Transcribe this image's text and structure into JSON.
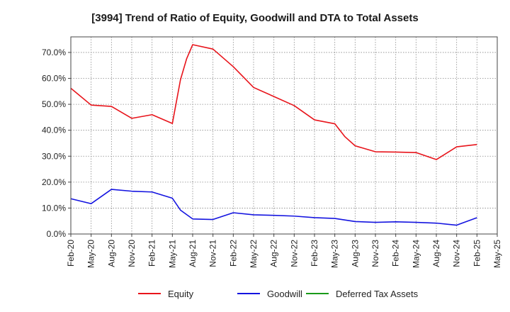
{
  "chart_data": {
    "type": "line",
    "title": "[3994]  Trend of Ratio of Equity, Goodwill and DTA to Total Assets",
    "xlabel": "",
    "ylabel": "",
    "ylim": [
      0,
      76
    ],
    "y_ticks": [
      0,
      10,
      20,
      30,
      40,
      50,
      60,
      70
    ],
    "y_tick_labels": [
      "0.0%",
      "10.0%",
      "20.0%",
      "30.0%",
      "40.0%",
      "50.0%",
      "60.0%",
      "70.0%"
    ],
    "x_ticks": [
      "Feb-20",
      "May-20",
      "Aug-20",
      "Nov-20",
      "Feb-21",
      "May-21",
      "Aug-21",
      "Nov-21",
      "Feb-22",
      "May-22",
      "Aug-22",
      "Nov-22",
      "Feb-23",
      "May-23",
      "Aug-23",
      "Nov-23",
      "Feb-24",
      "May-24",
      "Aug-24",
      "Nov-24",
      "Feb-25",
      "May-25"
    ],
    "grid": true,
    "legend_position": "bottom",
    "series": [
      {
        "name": "Equity",
        "color": "#e8141b",
        "points": [
          [
            0,
            56.2
          ],
          [
            1,
            49.7
          ],
          [
            2,
            49.2
          ],
          [
            3,
            44.6
          ],
          [
            4,
            46.0
          ],
          [
            5,
            42.6
          ],
          [
            5.4,
            59.5
          ],
          [
            5.7,
            67.5
          ],
          [
            6,
            73.0
          ],
          [
            7,
            71.3
          ],
          [
            8,
            64.5
          ],
          [
            9,
            56.5
          ],
          [
            10,
            53.0
          ],
          [
            11,
            49.5
          ],
          [
            12,
            44.0
          ],
          [
            13,
            42.5
          ],
          [
            13.5,
            37.5
          ],
          [
            14,
            34.0
          ],
          [
            15,
            31.7
          ],
          [
            16,
            31.6
          ],
          [
            17,
            31.4
          ],
          [
            18,
            28.7
          ],
          [
            19,
            33.6
          ],
          [
            20,
            34.5
          ]
        ]
      },
      {
        "name": "Goodwill",
        "color": "#1414e0",
        "points": [
          [
            0,
            13.6
          ],
          [
            1,
            11.7
          ],
          [
            2,
            17.2
          ],
          [
            3,
            16.5
          ],
          [
            4,
            16.2
          ],
          [
            5,
            13.8
          ],
          [
            5.4,
            9.2
          ],
          [
            6,
            5.8
          ],
          [
            7,
            5.6
          ],
          [
            8,
            8.2
          ],
          [
            9,
            7.4
          ],
          [
            10,
            7.2
          ],
          [
            11,
            6.9
          ],
          [
            12,
            6.3
          ],
          [
            13,
            6.0
          ],
          [
            14,
            4.8
          ],
          [
            15,
            4.5
          ],
          [
            16,
            4.7
          ],
          [
            17,
            4.5
          ],
          [
            18,
            4.2
          ],
          [
            19,
            3.4
          ],
          [
            20,
            6.3
          ]
        ]
      },
      {
        "name": "Deferred Tax Assets",
        "color": "#1a9a1a",
        "points": []
      }
    ]
  }
}
